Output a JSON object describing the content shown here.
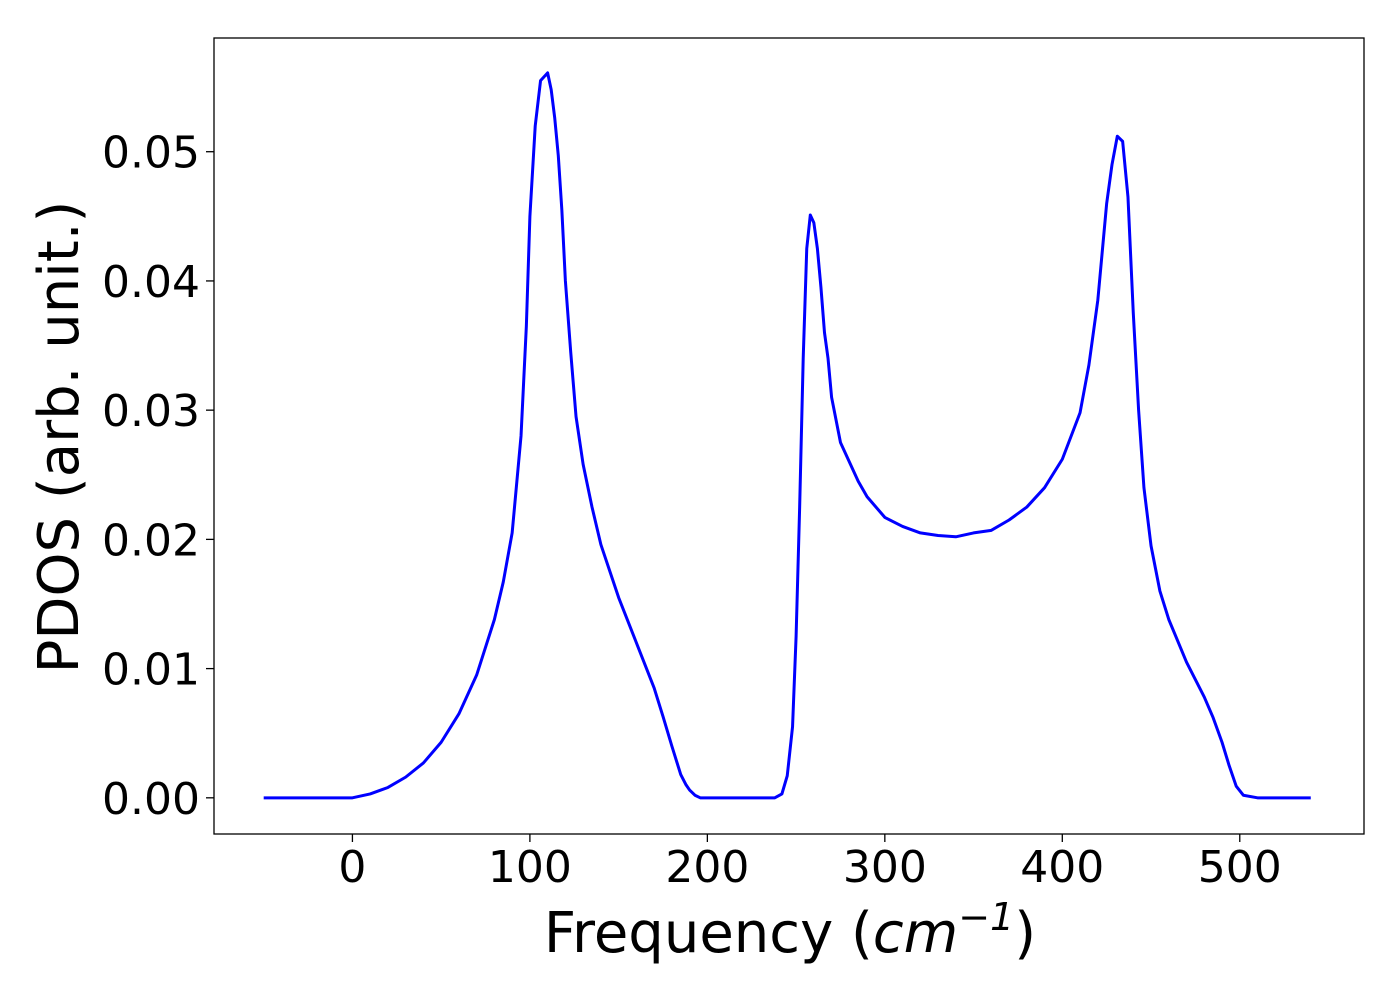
{
  "chart_data": {
    "type": "line",
    "xlabel_main": "Frequency (",
    "xlabel_unit": "cm",
    "xlabel_exp": "−1",
    "xlabel_close": ")",
    "ylabel": "PDOS (arb. unit.)",
    "xlim": [
      -78,
      570
    ],
    "ylim": [
      -0.0028,
      0.0588
    ],
    "xticks": [
      0,
      100,
      200,
      300,
      400,
      500
    ],
    "xtick_labels": [
      "0",
      "100",
      "200",
      "300",
      "400",
      "500"
    ],
    "yticks": [
      0.0,
      0.01,
      0.02,
      0.03,
      0.04,
      0.05
    ],
    "ytick_labels": [
      "0.00",
      "0.01",
      "0.02",
      "0.03",
      "0.04",
      "0.05"
    ],
    "grid": false,
    "legend": "none",
    "series": [
      {
        "color": "#0000ff",
        "x": [
          -50,
          -20,
          0,
          10,
          20,
          30,
          40,
          50,
          60,
          70,
          80,
          85,
          90,
          95,
          98,
          100,
          103,
          106,
          108,
          110,
          112,
          114,
          116,
          118,
          120,
          123,
          126,
          130,
          135,
          140,
          150,
          160,
          170,
          175,
          180,
          185,
          188,
          190,
          193,
          196,
          200,
          210,
          220,
          230,
          238,
          242,
          245,
          248,
          250,
          252,
          254,
          256,
          258,
          260,
          262,
          264,
          266,
          268,
          270,
          275,
          280,
          285,
          290,
          300,
          310,
          320,
          330,
          340,
          350,
          360,
          370,
          380,
          390,
          400,
          410,
          415,
          420,
          425,
          428,
          431,
          434,
          437,
          440,
          443,
          446,
          450,
          455,
          460,
          470,
          480,
          485,
          490,
          494,
          498,
          502,
          510,
          520,
          530,
          540
        ],
        "y": [
          0.0,
          0.0,
          0.0,
          0.0003,
          0.0008,
          0.0016,
          0.0027,
          0.0043,
          0.0065,
          0.0095,
          0.0138,
          0.0167,
          0.0205,
          0.028,
          0.0365,
          0.045,
          0.052,
          0.0555,
          0.0558,
          0.0561,
          0.0548,
          0.0526,
          0.0497,
          0.0455,
          0.04,
          0.0345,
          0.0295,
          0.0258,
          0.0225,
          0.0196,
          0.0155,
          0.012,
          0.0085,
          0.0063,
          0.004,
          0.0018,
          0.001,
          0.0006,
          0.0002,
          0.0,
          0.0,
          0.0,
          0.0,
          0.0,
          0.0,
          0.0003,
          0.0017,
          0.0055,
          0.0125,
          0.0225,
          0.034,
          0.0425,
          0.0451,
          0.0445,
          0.0425,
          0.0395,
          0.036,
          0.034,
          0.031,
          0.0275,
          0.026,
          0.0245,
          0.0233,
          0.0217,
          0.021,
          0.0205,
          0.0203,
          0.0202,
          0.0205,
          0.0207,
          0.0215,
          0.0225,
          0.024,
          0.0262,
          0.0298,
          0.0335,
          0.0385,
          0.046,
          0.049,
          0.0512,
          0.0508,
          0.0465,
          0.0375,
          0.03,
          0.024,
          0.0195,
          0.016,
          0.0138,
          0.0105,
          0.0078,
          0.0062,
          0.0043,
          0.0025,
          0.0009,
          0.0002,
          0.0,
          0.0,
          0.0,
          0.0
        ]
      }
    ]
  }
}
